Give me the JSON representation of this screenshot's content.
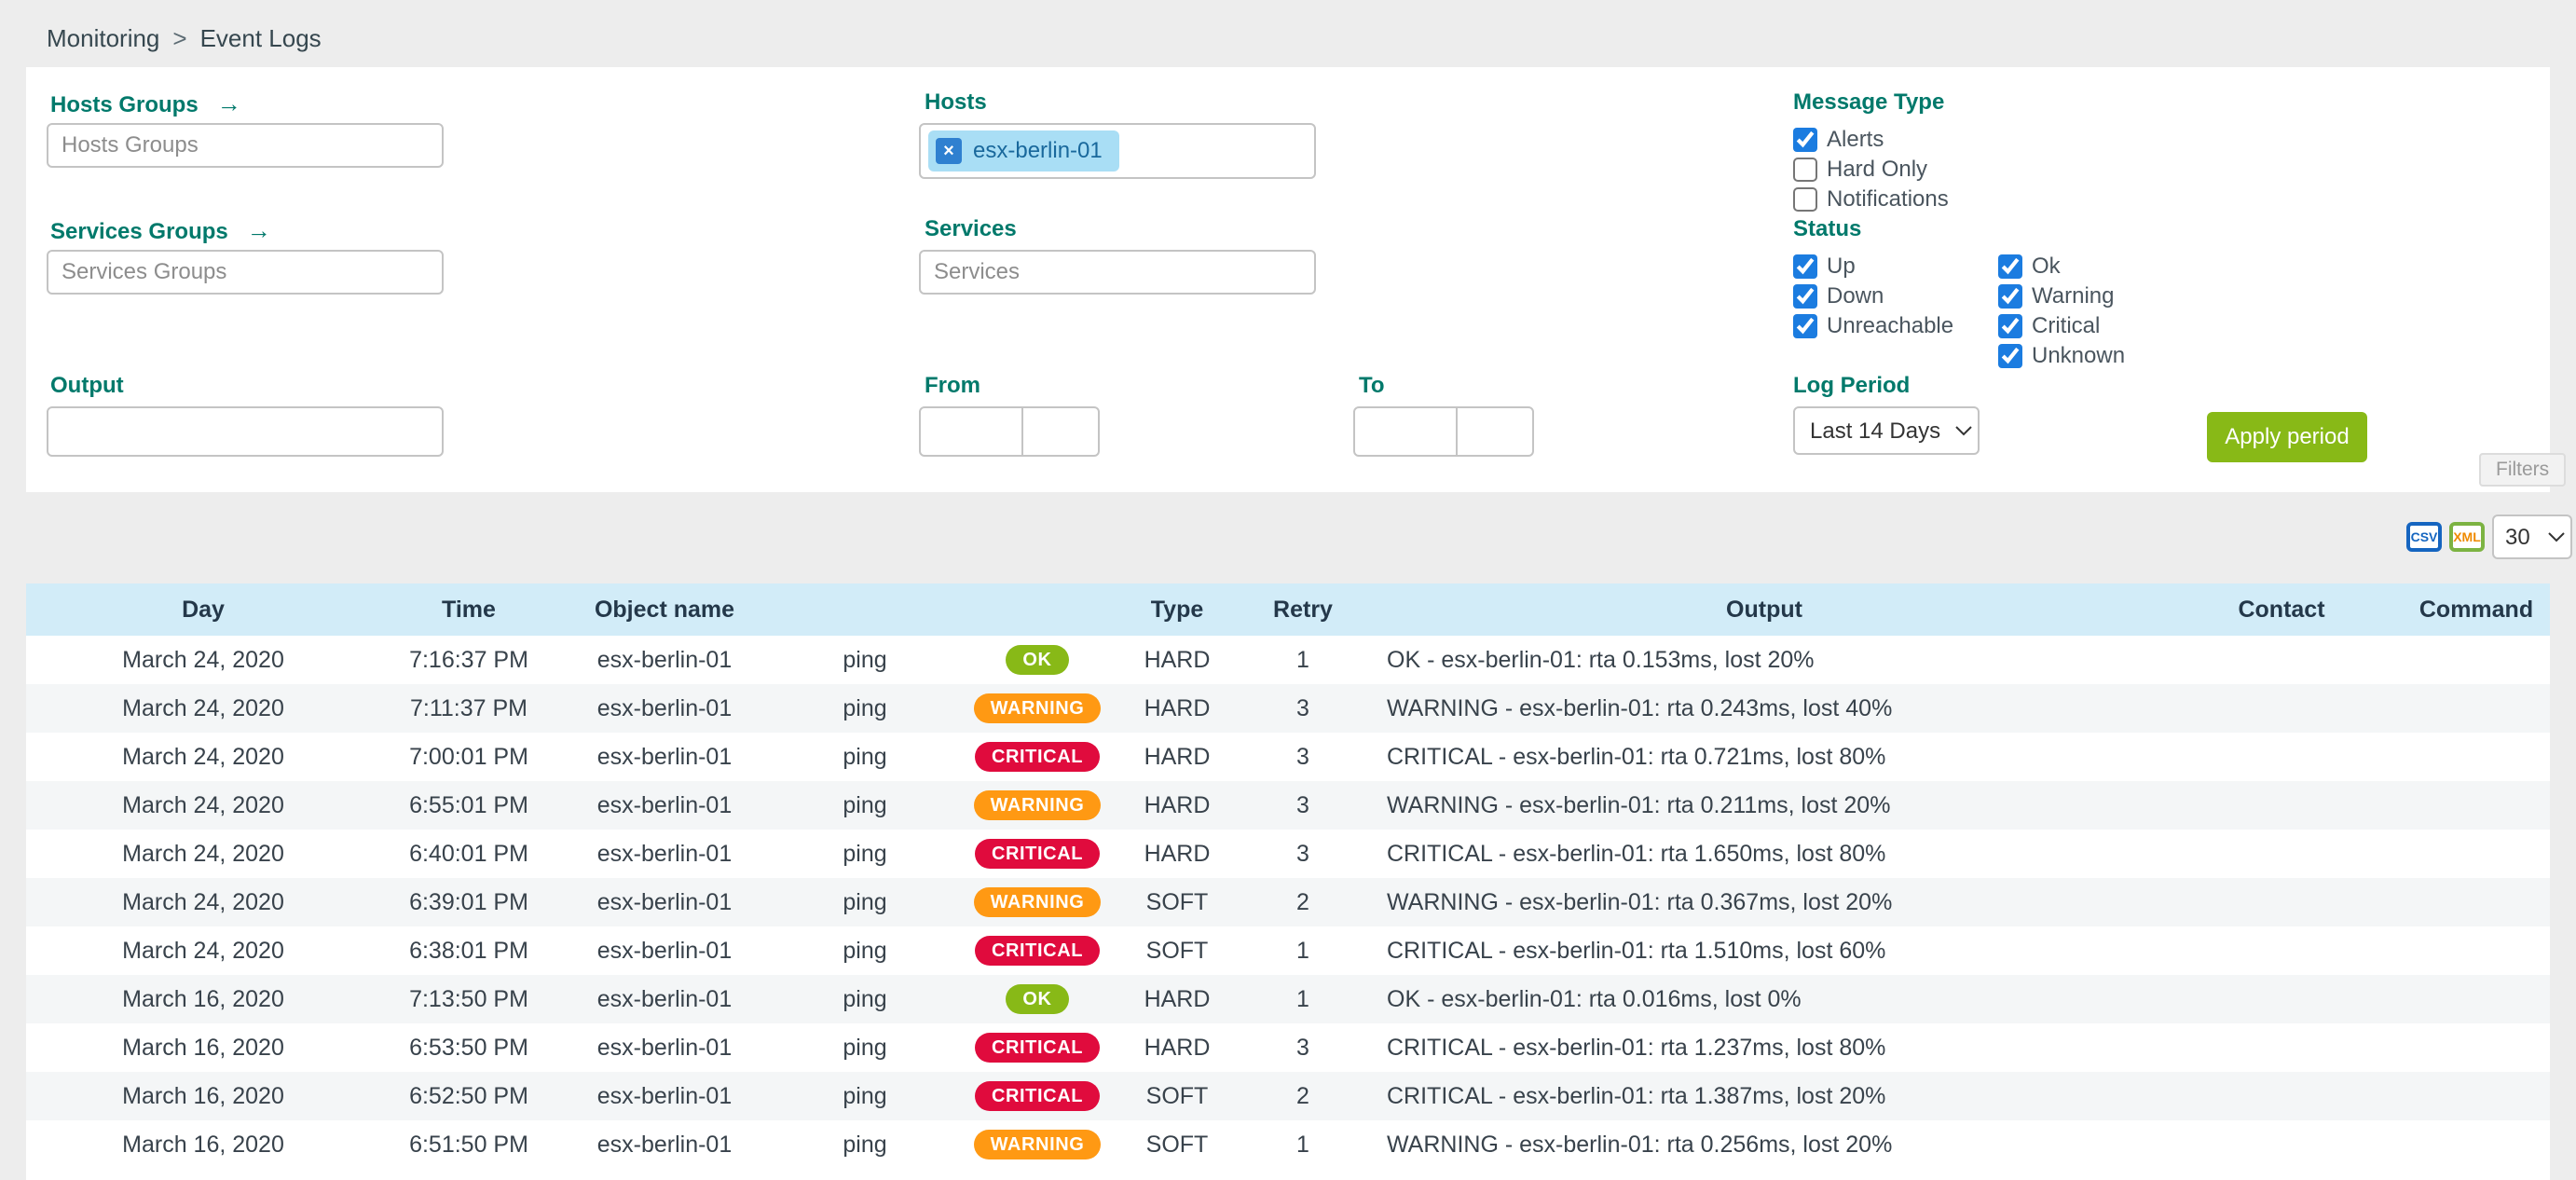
{
  "breadcrumb": {
    "section": "Monitoring",
    "separator": ">",
    "page": "Event Logs"
  },
  "icons": {
    "arrow_right": "→",
    "remove_x": "×"
  },
  "filter_panel": {
    "hosts_groups_label": "Hosts Groups",
    "hosts_groups_placeholder": "Hosts Groups",
    "services_groups_label": "Services Groups",
    "services_groups_placeholder": "Services Groups",
    "output_label": "Output",
    "output_value": "",
    "hosts_label": "Hosts",
    "hosts_selected": [
      "esx-berlin-01"
    ],
    "services_label": "Services",
    "services_placeholder": "Services",
    "from_label": "From",
    "to_label": "To",
    "message_type_label": "Message Type",
    "message_type_options": [
      {
        "label": "Alerts",
        "checked": true
      },
      {
        "label": "Hard Only",
        "checked": false
      },
      {
        "label": "Notifications",
        "checked": false
      }
    ],
    "status_label": "Status",
    "status_options_col1": [
      {
        "label": "Up",
        "checked": true
      },
      {
        "label": "Down",
        "checked": true
      },
      {
        "label": "Unreachable",
        "checked": true
      }
    ],
    "status_options_col2": [
      {
        "label": "Ok",
        "checked": true
      },
      {
        "label": "Warning",
        "checked": true
      },
      {
        "label": "Critical",
        "checked": true
      },
      {
        "label": "Unknown",
        "checked": true
      }
    ],
    "log_period_label": "Log Period",
    "log_period_value": "Last 14 Days",
    "apply_button_label": "Apply period",
    "filters_tab_label": "Filters"
  },
  "export_bar": {
    "csv_label": "CSV",
    "xml_label": "XML",
    "rows_per_page": "30"
  },
  "table": {
    "headers": {
      "day": "Day",
      "time": "Time",
      "object": "Object name",
      "type": "Type",
      "retry": "Retry",
      "output": "Output",
      "contact": "Contact",
      "command": "Command"
    },
    "rows": [
      {
        "day": "March 24, 2020",
        "time": "7:16:37 PM",
        "object": "esx-berlin-01",
        "service": "ping",
        "status": "OK",
        "type": "HARD",
        "retry": "1",
        "output": "OK - esx-berlin-01: rta 0.153ms, lost 20%",
        "contact": "",
        "command": ""
      },
      {
        "day": "March 24, 2020",
        "time": "7:11:37 PM",
        "object": "esx-berlin-01",
        "service": "ping",
        "status": "WARNING",
        "type": "HARD",
        "retry": "3",
        "output": "WARNING - esx-berlin-01: rta 0.243ms, lost 40%",
        "contact": "",
        "command": ""
      },
      {
        "day": "March 24, 2020",
        "time": "7:00:01 PM",
        "object": "esx-berlin-01",
        "service": "ping",
        "status": "CRITICAL",
        "type": "HARD",
        "retry": "3",
        "output": "CRITICAL - esx-berlin-01: rta 0.721ms, lost 80%",
        "contact": "",
        "command": ""
      },
      {
        "day": "March 24, 2020",
        "time": "6:55:01 PM",
        "object": "esx-berlin-01",
        "service": "ping",
        "status": "WARNING",
        "type": "HARD",
        "retry": "3",
        "output": "WARNING - esx-berlin-01: rta 0.211ms, lost 20%",
        "contact": "",
        "command": ""
      },
      {
        "day": "March 24, 2020",
        "time": "6:40:01 PM",
        "object": "esx-berlin-01",
        "service": "ping",
        "status": "CRITICAL",
        "type": "HARD",
        "retry": "3",
        "output": "CRITICAL - esx-berlin-01: rta 1.650ms, lost 80%",
        "contact": "",
        "command": ""
      },
      {
        "day": "March 24, 2020",
        "time": "6:39:01 PM",
        "object": "esx-berlin-01",
        "service": "ping",
        "status": "WARNING",
        "type": "SOFT",
        "retry": "2",
        "output": "WARNING - esx-berlin-01: rta 0.367ms, lost 20%",
        "contact": "",
        "command": ""
      },
      {
        "day": "March 24, 2020",
        "time": "6:38:01 PM",
        "object": "esx-berlin-01",
        "service": "ping",
        "status": "CRITICAL",
        "type": "SOFT",
        "retry": "1",
        "output": "CRITICAL - esx-berlin-01: rta 1.510ms, lost 60%",
        "contact": "",
        "command": ""
      },
      {
        "day": "March 16, 2020",
        "time": "7:13:50 PM",
        "object": "esx-berlin-01",
        "service": "ping",
        "status": "OK",
        "type": "HARD",
        "retry": "1",
        "output": "OK - esx-berlin-01: rta 0.016ms, lost 0%",
        "contact": "",
        "command": ""
      },
      {
        "day": "March 16, 2020",
        "time": "6:53:50 PM",
        "object": "esx-berlin-01",
        "service": "ping",
        "status": "CRITICAL",
        "type": "HARD",
        "retry": "3",
        "output": "CRITICAL - esx-berlin-01: rta 1.237ms, lost 80%",
        "contact": "",
        "command": ""
      },
      {
        "day": "March 16, 2020",
        "time": "6:52:50 PM",
        "object": "esx-berlin-01",
        "service": "ping",
        "status": "CRITICAL",
        "type": "SOFT",
        "retry": "2",
        "output": "CRITICAL - esx-berlin-01: rta 1.387ms, lost 20%",
        "contact": "",
        "command": ""
      },
      {
        "day": "March 16, 2020",
        "time": "6:51:50 PM",
        "object": "esx-berlin-01",
        "service": "ping",
        "status": "WARNING",
        "type": "SOFT",
        "retry": "1",
        "output": "WARNING - esx-berlin-01: rta 0.256ms, lost 20%",
        "contact": "",
        "command": ""
      }
    ]
  },
  "colors": {
    "ok": "#88B917",
    "warning": "#FF9913",
    "critical": "#E00B3D",
    "accent_teal": "#00796B",
    "button_green": "#88B917",
    "table_header_blue": "#D2ECF8"
  }
}
